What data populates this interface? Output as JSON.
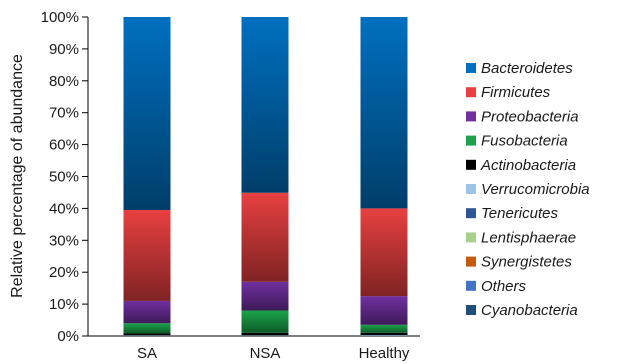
{
  "chart_data": {
    "type": "bar",
    "stacked": true,
    "categories": [
      "SA",
      "NSA",
      "Healthy"
    ],
    "ylabel": "Relative percentage of abundance",
    "xlabel": "",
    "ylim": [
      0,
      100
    ],
    "yticks": [
      "0%",
      "10%",
      "20%",
      "30%",
      "40%",
      "50%",
      "60%",
      "70%",
      "80%",
      "90%",
      "100%"
    ],
    "series": [
      {
        "name": "Cyanobacteria",
        "color": "#1f4e79",
        "values": [
          0.0,
          0.0,
          0.0
        ]
      },
      {
        "name": "Others",
        "color": "#4472c4",
        "values": [
          0.0,
          0.0,
          0.0
        ]
      },
      {
        "name": "Synergistetes",
        "color": "#c55a11",
        "values": [
          0.0,
          0.0,
          0.0
        ]
      },
      {
        "name": "Lentisphaerae",
        "color": "#a9d18e",
        "values": [
          0.0,
          0.0,
          0.0
        ]
      },
      {
        "name": "Tenericutes",
        "color": "#2f5597",
        "values": [
          0.0,
          0.0,
          0.0
        ]
      },
      {
        "name": "Verrucomicrobia",
        "color": "#9dc3e6",
        "values": [
          0.2,
          0.2,
          0.3
        ]
      },
      {
        "name": "Actinobacteria",
        "color": "#000000",
        "values": [
          0.6,
          0.8,
          0.7
        ]
      },
      {
        "name": "Fusobacteria",
        "color": "#1aa34a",
        "values": [
          3.2,
          7.0,
          2.5
        ]
      },
      {
        "name": "Proteobacteria",
        "color": "#7030a0",
        "values": [
          7.0,
          9.0,
          9.0
        ]
      },
      {
        "name": "Firmicutes",
        "color": "#e84040",
        "values": [
          28.5,
          27.9,
          27.5
        ]
      },
      {
        "name": "Bacteroidetes",
        "color": "#0070c0",
        "values": [
          60.5,
          55.1,
          60.0
        ]
      }
    ],
    "legend": {
      "position": "right",
      "order": [
        "Bacteroidetes",
        "Firmicutes",
        "Proteobacteria",
        "Fusobacteria",
        "Actinobacteria",
        "Verrucomicrobia",
        "Tenericutes",
        "Lentisphaerae",
        "Synergistetes",
        "Others",
        "Cyanobacteria"
      ]
    }
  }
}
